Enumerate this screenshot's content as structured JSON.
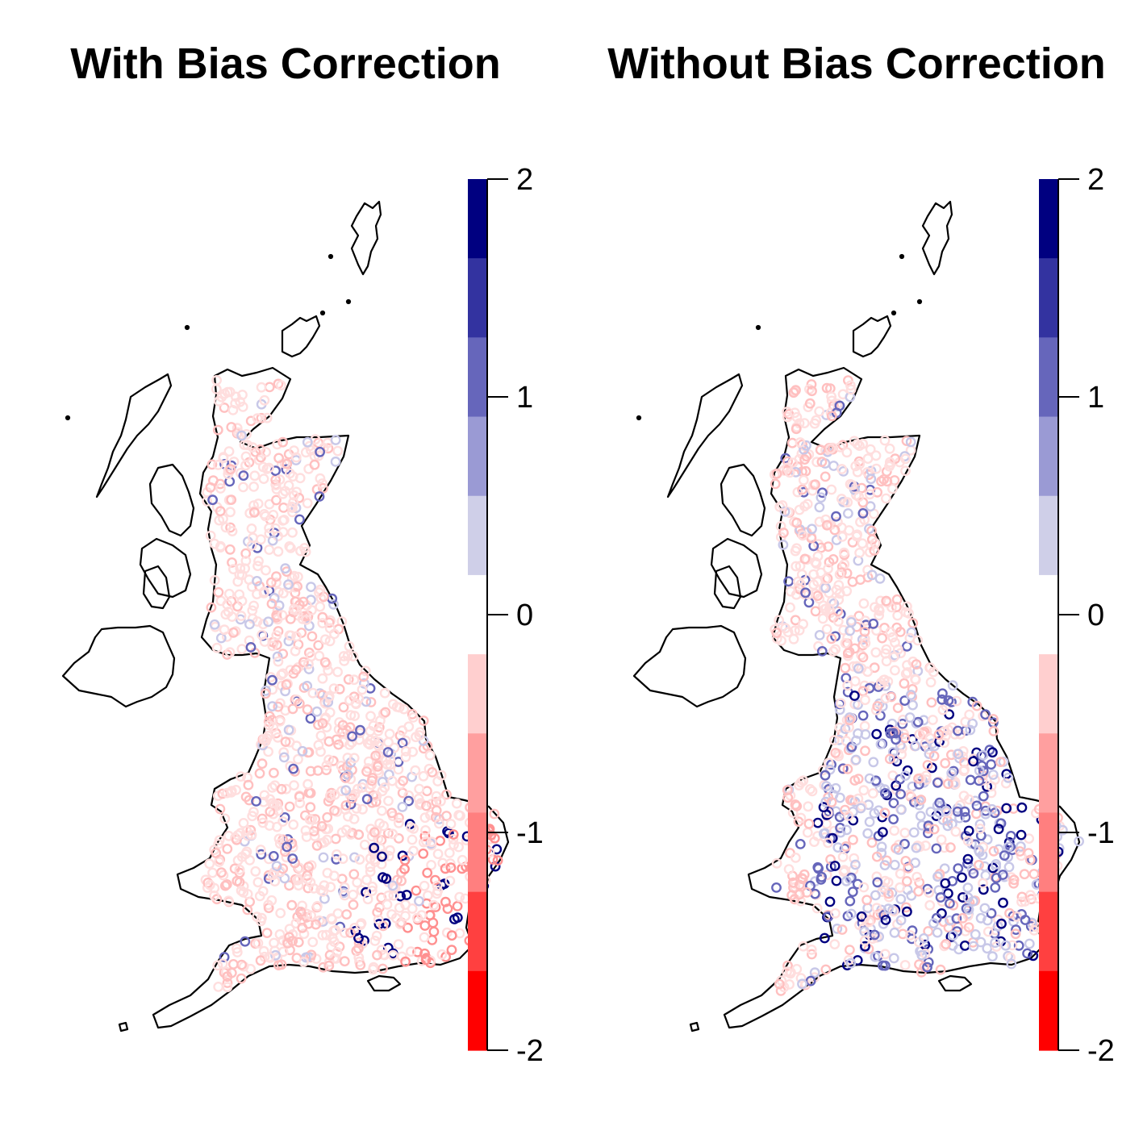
{
  "panels": [
    {
      "id": "with",
      "title": "With Bias Correction"
    },
    {
      "id": "without",
      "title": "Without Bias Correction"
    }
  ],
  "legend": {
    "min": -2,
    "max": 2,
    "ticks": [
      "2",
      "1",
      "0",
      "-1",
      "-2"
    ],
    "bands": [
      "#ff0000",
      "#ff4040",
      "#ff7f7f",
      "#ff9f9f",
      "#ffcfcf",
      "#ffffff",
      "#cfcfe8",
      "#9a9ad4",
      "#6666bb",
      "#3333a0",
      "#000080"
    ]
  },
  "colors": {
    "outline": "#000000",
    "strong_blue": "#000080",
    "mid_blue": "#6666bb",
    "light_blue": "#c8c8e8",
    "light_red": "#ffc0c0",
    "mid_red": "#ff9090",
    "pale_red": "#ffdede"
  }
}
